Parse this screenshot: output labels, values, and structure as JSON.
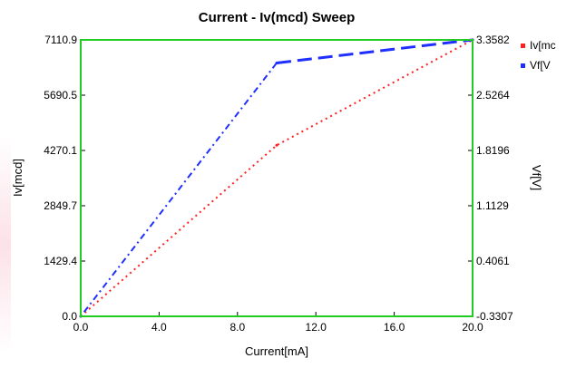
{
  "chart_data": {
    "type": "line",
    "title": "Current - Iv(mcd) Sweep",
    "xlabel": "Current[mA]",
    "ylabel_left": "Iv[mcd]",
    "ylabel_right": "Vf[V]",
    "xlim": [
      0,
      20
    ],
    "ylim_left": [
      0,
      7110.9
    ],
    "ylim_right": [
      -0.3307,
      3.3582
    ],
    "x_ticks": [
      "0.0",
      "4.0",
      "8.0",
      "12.0",
      "16.0",
      "20.0"
    ],
    "y_ticks_left": [
      "0.0",
      "1429.4",
      "2849.7",
      "4270.1",
      "5690.5",
      "7110.9"
    ],
    "y_ticks_right": [
      "-0.3307",
      "0.4061",
      "1.1129",
      "1.8196",
      "2.5264",
      "3.3582"
    ],
    "grid": false,
    "legend_position": "right",
    "frame_color": "#22cc22",
    "series": [
      {
        "name": "Iv[mcd]",
        "legend_label": "Iv[mc",
        "axis": "left",
        "color": "#ff2020",
        "style": "dotted",
        "x": [
          0,
          10,
          20
        ],
        "y": [
          0,
          4400,
          7110.9
        ]
      },
      {
        "name": "Vf[V]",
        "legend_label": "Vf[V",
        "axis": "right",
        "color": "#1f2fff",
        "style": "dashdot-then-dashed",
        "x": [
          0,
          10,
          20
        ],
        "y": [
          -0.3307,
          3.05,
          3.3582
        ]
      }
    ]
  }
}
